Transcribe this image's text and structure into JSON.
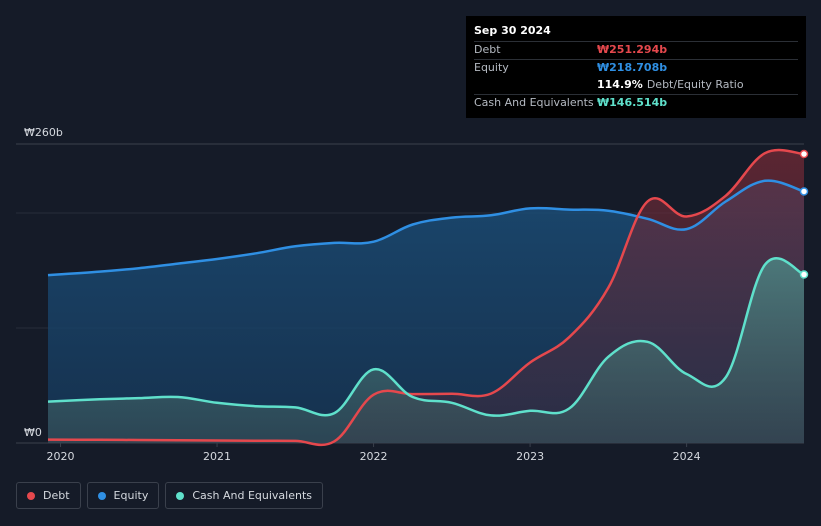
{
  "tooltip": {
    "date": "Sep 30 2024",
    "rows": [
      {
        "label": "Debt",
        "value": "₩251.294b",
        "color": "#e5484d"
      },
      {
        "label": "Equity",
        "value": "₩218.708b",
        "color": "#2f8fe3"
      },
      {
        "label": "",
        "value": "114.9%",
        "suffix": "Debt/Equity Ratio",
        "color": "#ffffff"
      },
      {
        "label": "Cash And Equivalents",
        "value": "₩146.514b",
        "color": "#5fe0cb"
      }
    ]
  },
  "legend": [
    {
      "label": "Debt",
      "color": "#e5484d"
    },
    {
      "label": "Equity",
      "color": "#2f8fe3"
    },
    {
      "label": "Cash And Equivalents",
      "color": "#5fe0cb"
    }
  ],
  "chart_data": {
    "type": "area",
    "title": "",
    "xlabel": "",
    "ylabel": "",
    "ylim": [
      0,
      260
    ],
    "xlim": [
      2019.92,
      2024.75
    ],
    "y_ticks": [
      {
        "value": 260,
        "label": "₩260b"
      },
      {
        "value": 0,
        "label": "₩0"
      }
    ],
    "x_ticks": [
      {
        "value": 2020,
        "label": "2020"
      },
      {
        "value": 2021,
        "label": "2021"
      },
      {
        "value": 2022,
        "label": "2022"
      },
      {
        "value": 2023,
        "label": "2023"
      },
      {
        "value": 2024,
        "label": "2024"
      }
    ],
    "series": [
      {
        "name": "Equity",
        "color": "#2f8fe3",
        "points": [
          [
            2019.92,
            146
          ],
          [
            2020.25,
            149
          ],
          [
            2020.5,
            152
          ],
          [
            2020.75,
            156
          ],
          [
            2021.0,
            160
          ],
          [
            2021.25,
            165
          ],
          [
            2021.5,
            171
          ],
          [
            2021.75,
            174
          ],
          [
            2022.0,
            175
          ],
          [
            2022.25,
            190
          ],
          [
            2022.5,
            196
          ],
          [
            2022.75,
            198
          ],
          [
            2023.0,
            204
          ],
          [
            2023.25,
            203
          ],
          [
            2023.5,
            202
          ],
          [
            2023.75,
            195
          ],
          [
            2024.0,
            186
          ],
          [
            2024.25,
            210
          ],
          [
            2024.5,
            228
          ],
          [
            2024.75,
            218.708
          ]
        ]
      },
      {
        "name": "Debt",
        "color": "#e5484d",
        "points": [
          [
            2019.92,
            3
          ],
          [
            2020.25,
            2.8
          ],
          [
            2020.5,
            2.6
          ],
          [
            2020.75,
            2.4
          ],
          [
            2021.0,
            2.2
          ],
          [
            2021.25,
            2.0
          ],
          [
            2021.5,
            1.8
          ],
          [
            2021.75,
            1.5
          ],
          [
            2022.0,
            42
          ],
          [
            2022.25,
            42.5
          ],
          [
            2022.5,
            42.8
          ],
          [
            2022.75,
            43
          ],
          [
            2023.0,
            70
          ],
          [
            2023.25,
            92
          ],
          [
            2023.5,
            135
          ],
          [
            2023.75,
            210
          ],
          [
            2024.0,
            197
          ],
          [
            2024.25,
            215
          ],
          [
            2024.5,
            252
          ],
          [
            2024.75,
            251.294
          ]
        ]
      },
      {
        "name": "Cash And Equivalents",
        "color": "#5fe0cb",
        "points": [
          [
            2019.92,
            36
          ],
          [
            2020.25,
            38
          ],
          [
            2020.5,
            39
          ],
          [
            2020.75,
            40
          ],
          [
            2021.0,
            35
          ],
          [
            2021.25,
            32
          ],
          [
            2021.5,
            31
          ],
          [
            2021.75,
            26
          ],
          [
            2022.0,
            64
          ],
          [
            2022.25,
            40
          ],
          [
            2022.5,
            35
          ],
          [
            2022.75,
            24
          ],
          [
            2023.0,
            28
          ],
          [
            2023.25,
            30
          ],
          [
            2023.5,
            75
          ],
          [
            2023.75,
            88
          ],
          [
            2024.0,
            60
          ],
          [
            2024.25,
            57
          ],
          [
            2024.5,
            155
          ],
          [
            2024.75,
            146.514
          ]
        ]
      }
    ]
  }
}
